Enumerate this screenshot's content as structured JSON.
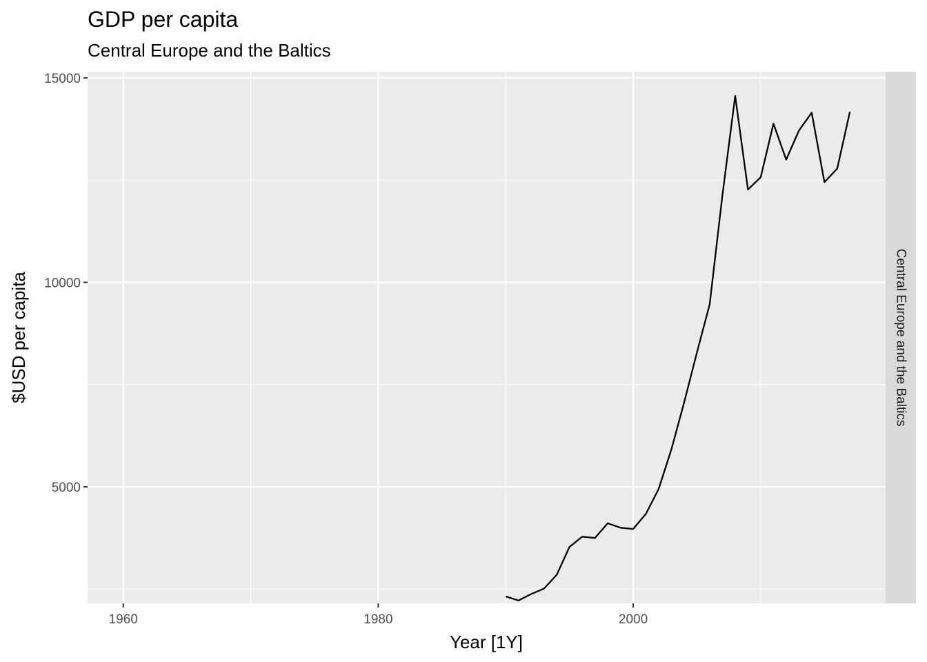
{
  "chart_data": {
    "type": "line",
    "title": "GDP per capita",
    "subtitle": "Central Europe and the Baltics",
    "xlabel": "Year [1Y]",
    "ylabel": "$USD per capita",
    "facet_label": "Central Europe and the Baltics",
    "xlim": [
      1957.2,
      2019.8
    ],
    "ylim": [
      2150,
      15150
    ],
    "x_ticks": [
      1960,
      1980,
      2000
    ],
    "x_tick_labels": [
      "1960",
      "1980",
      "2000"
    ],
    "x_minor_ticks": [
      1970,
      1990,
      2010
    ],
    "y_ticks": [
      5000,
      10000,
      15000
    ],
    "y_tick_labels": [
      "5000",
      "10000",
      "15000"
    ],
    "y_minor_ticks": [
      2500,
      7500,
      12500
    ],
    "grid": true,
    "line_color": "#000000",
    "series": [
      {
        "x": [
          1990,
          1991,
          1992,
          1993,
          1994,
          1995,
          1996,
          1997,
          1998,
          1999,
          2000,
          2001,
          2002,
          2003,
          2004,
          2005,
          2006,
          2007,
          2008,
          2009,
          2010,
          2011,
          2012,
          2013,
          2014,
          2015,
          2016,
          2017
        ],
        "values": [
          2320,
          2220,
          2380,
          2510,
          2850,
          3530,
          3780,
          3750,
          4110,
          4000,
          3970,
          4340,
          4950,
          5920,
          7070,
          8290,
          9460,
          12130,
          14560,
          12270,
          12570,
          13880,
          13000,
          13710,
          14150,
          12450,
          12780,
          14170
        ]
      }
    ]
  }
}
